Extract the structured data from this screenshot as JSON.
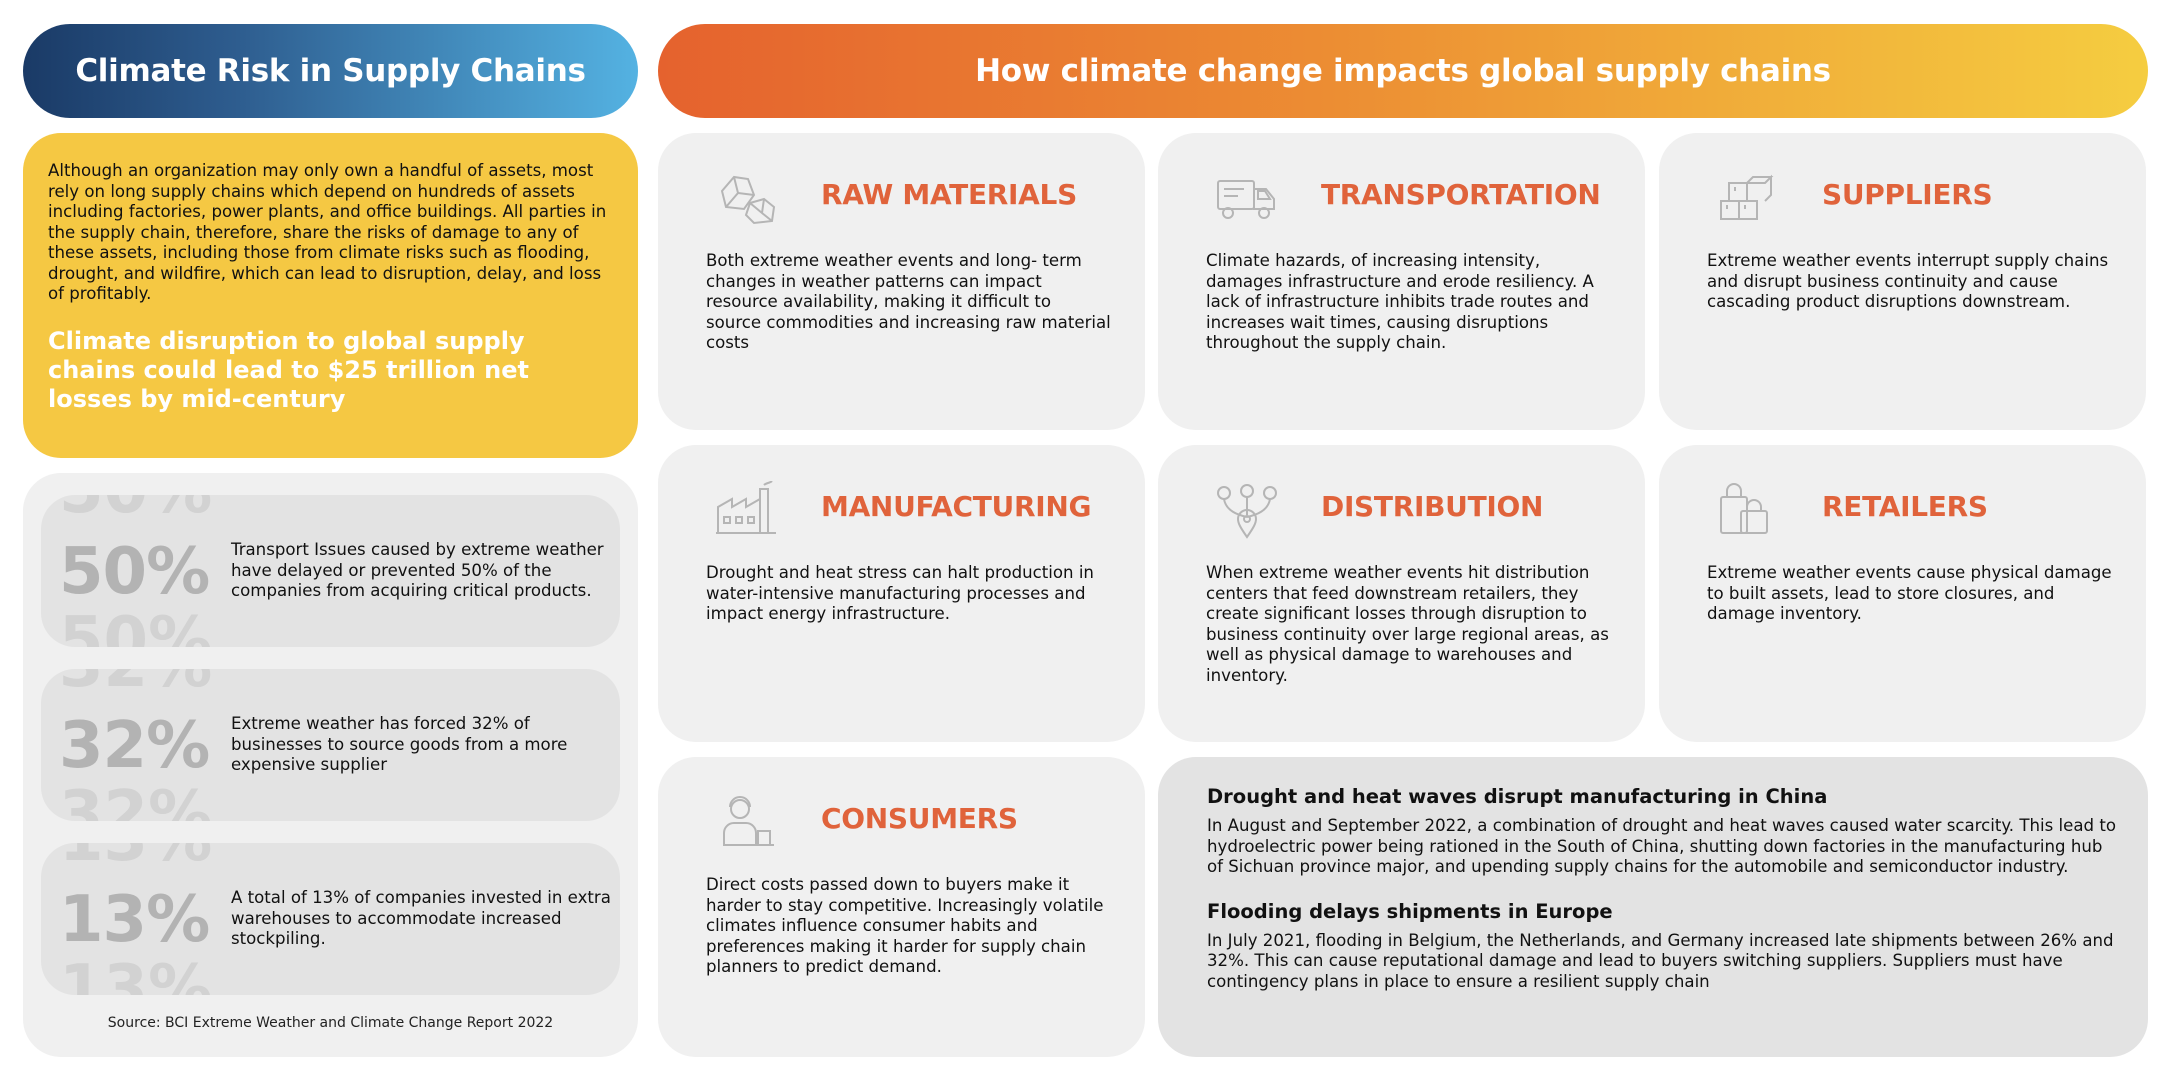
{
  "left_title": "Climate Risk in Supply Chains",
  "right_title": "How climate change impacts global supply chains",
  "intro": {
    "text": "Although an organization may only own a handful of assets, most rely on long supply chains which depend on hundreds of assets including factories, power plants, and office buildings. All parties in the supply chain, therefore, share the risks of damage to any of these assets, including those from climate risks such as flooding, drought, and wildfire, which can lead to disruption, delay, and loss of profitably.",
    "highlight": "Climate disruption to global supply chains could lead to $25 trillion net losses by mid-century"
  },
  "stats": [
    {
      "value": "50%",
      "text": "Transport Issues caused by extreme weather have delayed or prevented 50% of the companies from acquiring critical products."
    },
    {
      "value": "32%",
      "text": "Extreme weather has forced 32% of businesses to source goods from a more expensive supplier"
    },
    {
      "value": "13%",
      "text": "A total of 13% of companies invested in extra warehouses to accommodate increased stockpiling."
    }
  ],
  "source": "Source: BCI Extreme Weather and Climate Change Report 2022",
  "categories": [
    {
      "title": "RAW MATERIALS",
      "icon": "raw-materials-icon",
      "text": "Both extreme weather events and long- term changes in weather patterns can impact resource availability, making it difficult to source commodities and increasing raw material costs"
    },
    {
      "title": "TRANSPORTATION",
      "icon": "truck-icon",
      "text": "Climate hazards, of increasing intensity, damages infrastructure and erode resiliency. A lack of infrastructure inhibits trade routes and increases wait times, causing disruptions throughout the supply chain."
    },
    {
      "title": "SUPPLIERS",
      "icon": "boxes-icon",
      "text": "Extreme weather events interrupt supply chains and disrupt business continuity and cause cascading product disruptions downstream."
    },
    {
      "title": "MANUFACTURING",
      "icon": "factory-icon",
      "text": "Drought and heat stress can halt production in water-intensive manufacturing processes and impact energy infrastructure."
    },
    {
      "title": "DISTRIBUTION",
      "icon": "distribution-network-icon",
      "text": "When extreme weather events hit distribution centers that feed downstream retailers, they create significant losses through disruption to business continuity over large regional areas, as well as physical damage to warehouses and inventory."
    },
    {
      "title": "RETAILERS",
      "icon": "shopping-bags-icon",
      "text": "Extreme weather events cause physical damage to built assets, lead to store closures, and damage inventory."
    },
    {
      "title": "CONSUMERS",
      "icon": "consumer-icon",
      "text": "Direct costs passed down to buyers make it harder to stay competitive. Increasingly volatile climates influence consumer habits and preferences making it harder for supply chain planners to predict demand."
    }
  ],
  "cases": [
    {
      "title": "Drought and heat waves disrupt manufacturing in China",
      "text": "In August and September 2022, a combination of drought and heat waves caused water scarcity. This lead to hydroelectric power being rationed in the South of China, shutting down factories in the manufacturing hub of Sichuan province major, and upending supply chains for the automobile and semiconductor industry."
    },
    {
      "title": "Flooding delays shipments in Europe",
      "text": "In July 2021, flooding in Belgium, the Netherlands, and Germany increased late shipments between 26% and 32%. This can cause reputational damage and lead to buyers switching suppliers. Suppliers must have contingency plans in place to ensure a resilient supply chain"
    }
  ],
  "colors": {
    "accent_orange": "#e0633b",
    "intro_yellow": "#f5c843",
    "panel_gray": "#f0f0f0"
  }
}
